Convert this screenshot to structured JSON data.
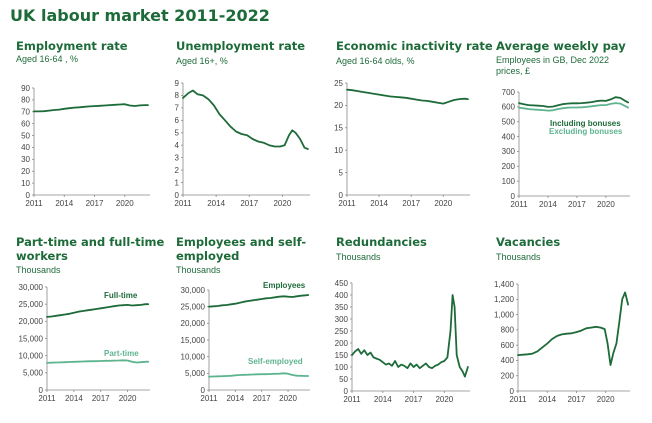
{
  "title": "UK labour market 2011-2022",
  "colors": {
    "dark": "#1e6b3a",
    "light": "#5fb490"
  },
  "chart_data": [
    {
      "id": "employment",
      "type": "line",
      "title_lines": [
        "Employment rate"
      ],
      "subtitle_lines": [
        "Aged 16-64 , %"
      ],
      "ylim": [
        0,
        90
      ],
      "yticks": [
        "0",
        "10",
        "20",
        "30",
        "40",
        "50",
        "60",
        "70",
        "80",
        "90"
      ],
      "ytick_values": [
        0,
        10,
        20,
        30,
        40,
        50,
        60,
        70,
        80,
        90
      ],
      "xlim": [
        2011,
        2022.5
      ],
      "xticks": [
        "2011",
        "2014",
        "2017",
        "2020"
      ],
      "xtick_values": [
        2011,
        2014,
        2017,
        2020
      ],
      "series": [
        {
          "color": "#1e6b3a",
          "x": [
            2011,
            2011.5,
            2012,
            2012.5,
            2013,
            2013.5,
            2014,
            2014.5,
            2015,
            2015.5,
            2016,
            2016.5,
            2017,
            2017.5,
            2018,
            2018.5,
            2019,
            2019.5,
            2020,
            2020.5,
            2021,
            2021.5,
            2022,
            2022.3
          ],
          "y": [
            70.3,
            70.3,
            70.5,
            71.0,
            71.5,
            71.8,
            72.5,
            73.0,
            73.5,
            73.8,
            74.2,
            74.5,
            74.8,
            75.0,
            75.3,
            75.6,
            75.9,
            76.1,
            76.4,
            75.3,
            74.9,
            75.4,
            75.6,
            75.6
          ]
        }
      ]
    },
    {
      "id": "unemployment",
      "type": "line",
      "title_lines": [
        "Unemployment rate"
      ],
      "subtitle_lines": [
        "Aged 16+, %"
      ],
      "ylim": [
        0,
        9
      ],
      "yticks": [
        "0",
        "1",
        "2",
        "3",
        "4",
        "5",
        "6",
        "7",
        "8",
        "9"
      ],
      "ytick_values": [
        0,
        1,
        2,
        3,
        4,
        5,
        6,
        7,
        8,
        9
      ],
      "xlim": [
        2011,
        2022.5
      ],
      "xticks": [
        "2011",
        "2014",
        "2017",
        "2020"
      ],
      "xtick_values": [
        2011,
        2014,
        2017,
        2020
      ],
      "series": [
        {
          "color": "#1e6b3a",
          "x": [
            2011,
            2011.5,
            2011.9,
            2012.3,
            2012.8,
            2013.3,
            2013.8,
            2014.3,
            2014.8,
            2015.3,
            2015.8,
            2016.3,
            2016.8,
            2017.3,
            2017.8,
            2018.3,
            2018.8,
            2019.3,
            2019.8,
            2020.2,
            2020.6,
            2020.9,
            2021.2,
            2021.6,
            2022,
            2022.3
          ],
          "y": [
            7.8,
            8.2,
            8.4,
            8.1,
            8.0,
            7.7,
            7.2,
            6.5,
            6.0,
            5.5,
            5.1,
            4.9,
            4.8,
            4.5,
            4.3,
            4.2,
            4.0,
            3.9,
            3.9,
            4.0,
            4.8,
            5.2,
            5.0,
            4.5,
            3.8,
            3.7
          ]
        }
      ]
    },
    {
      "id": "inactivity",
      "type": "line",
      "title_lines": [
        "Economic inactivity rate"
      ],
      "subtitle_lines": [
        "Aged 16-64 olds, %"
      ],
      "ylim": [
        0,
        25
      ],
      "yticks": [
        "0",
        "5",
        "10",
        "15",
        "20",
        "25"
      ],
      "ytick_values": [
        0,
        5,
        10,
        15,
        20,
        25
      ],
      "xlim": [
        2011,
        2022.5
      ],
      "xticks": [
        "2011",
        "2014",
        "2017",
        "2020"
      ],
      "xtick_values": [
        2011,
        2014,
        2017,
        2020
      ],
      "series": [
        {
          "color": "#1e6b3a",
          "x": [
            2011,
            2011.5,
            2012,
            2012.5,
            2013,
            2013.5,
            2014,
            2014.5,
            2015,
            2015.5,
            2016,
            2016.5,
            2017,
            2017.5,
            2018,
            2018.5,
            2019,
            2019.5,
            2020,
            2020.5,
            2021,
            2021.5,
            2022,
            2022.3
          ],
          "y": [
            23.5,
            23.4,
            23.2,
            23.0,
            22.8,
            22.6,
            22.4,
            22.2,
            22.0,
            21.9,
            21.8,
            21.7,
            21.5,
            21.3,
            21.1,
            21.0,
            20.8,
            20.6,
            20.4,
            20.8,
            21.2,
            21.4,
            21.5,
            21.4
          ]
        }
      ]
    },
    {
      "id": "pay",
      "type": "line",
      "title_lines": [
        "Average weekly pay"
      ],
      "subtitle_lines": [
        "Employees in GB, Dec 2022",
        "prices, £"
      ],
      "ylim": [
        0,
        700
      ],
      "yticks": [
        "0",
        "100",
        "200",
        "300",
        "400",
        "500",
        "600",
        "700"
      ],
      "ytick_values": [
        0,
        100,
        200,
        300,
        400,
        500,
        600,
        700
      ],
      "xlim": [
        2011,
        2022.5
      ],
      "xticks": [
        "2011",
        "2014",
        "2017",
        "2020"
      ],
      "xtick_values": [
        2011,
        2014,
        2017,
        2020
      ],
      "series": [
        {
          "name": "Including bonuses",
          "color": "#1e6b3a",
          "x": [
            2011,
            2011.5,
            2012,
            2012.5,
            2013,
            2013.5,
            2014,
            2014.5,
            2015,
            2015.5,
            2016,
            2016.5,
            2017,
            2017.5,
            2018,
            2018.5,
            2019,
            2019.5,
            2020,
            2020.5,
            2021,
            2021.5,
            2022,
            2022.3
          ],
          "y": [
            625,
            618,
            612,
            610,
            608,
            606,
            600,
            602,
            610,
            618,
            622,
            624,
            624,
            625,
            628,
            632,
            638,
            642,
            640,
            650,
            665,
            660,
            640,
            630
          ]
        },
        {
          "name": "Excluding bonuses",
          "color": "#5fb490",
          "x": [
            2011,
            2011.5,
            2012,
            2012.5,
            2013,
            2013.5,
            2014,
            2014.5,
            2015,
            2015.5,
            2016,
            2016.5,
            2017,
            2017.5,
            2018,
            2018.5,
            2019,
            2019.5,
            2020,
            2020.5,
            2021,
            2021.5,
            2022,
            2022.3
          ],
          "y": [
            595,
            590,
            585,
            582,
            580,
            578,
            575,
            577,
            585,
            590,
            594,
            596,
            596,
            597,
            600,
            604,
            608,
            612,
            612,
            620,
            625,
            622,
            605,
            595
          ]
        }
      ]
    },
    {
      "id": "parttime",
      "type": "line",
      "title_lines": [
        "Part-time and full-time",
        "workers"
      ],
      "subtitle_lines": [
        "Thousands"
      ],
      "ylim": [
        0,
        30000
      ],
      "yticks": [
        "0",
        "5,000",
        "10,000",
        "15,000",
        "20,000",
        "25,000",
        "30,000"
      ],
      "ytick_values": [
        0,
        5000,
        10000,
        15000,
        20000,
        25000,
        30000
      ],
      "xlim": [
        2011,
        2022.5
      ],
      "xticks": [
        "2011",
        "2014",
        "2017",
        "2020"
      ],
      "xtick_values": [
        2011,
        2014,
        2017,
        2020
      ],
      "series": [
        {
          "name": "Full-time",
          "color": "#1e6b3a",
          "x": [
            2011,
            2011.5,
            2012,
            2012.5,
            2013,
            2013.5,
            2014,
            2014.5,
            2015,
            2015.5,
            2016,
            2016.5,
            2017,
            2017.5,
            2018,
            2018.5,
            2019,
            2019.5,
            2020,
            2020.5,
            2021,
            2021.5,
            2022,
            2022.3
          ],
          "y": [
            21300,
            21400,
            21600,
            21800,
            22000,
            22200,
            22500,
            22800,
            23000,
            23200,
            23400,
            23600,
            23800,
            24000,
            24200,
            24400,
            24600,
            24700,
            24800,
            24600,
            24700,
            24800,
            25000,
            25000
          ]
        },
        {
          "name": "Part-time",
          "color": "#5fb490",
          "x": [
            2011,
            2011.5,
            2012,
            2012.5,
            2013,
            2013.5,
            2014,
            2014.5,
            2015,
            2015.5,
            2016,
            2016.5,
            2017,
            2017.5,
            2018,
            2018.5,
            2019,
            2019.5,
            2020,
            2020.5,
            2021,
            2021.5,
            2022,
            2022.3
          ],
          "y": [
            7900,
            7950,
            8000,
            8050,
            8100,
            8150,
            8200,
            8250,
            8300,
            8350,
            8400,
            8400,
            8450,
            8500,
            8500,
            8550,
            8600,
            8650,
            8600,
            8200,
            8000,
            8100,
            8200,
            8250
          ]
        }
      ]
    },
    {
      "id": "employees",
      "type": "line",
      "title_lines": [
        "Employees and self-",
        "employed"
      ],
      "subtitle_lines": [
        "Thousands"
      ],
      "ylim": [
        0,
        30000
      ],
      "yticks": [
        "0",
        "5,000",
        "10,000",
        "15,000",
        "20,000",
        "25,000",
        "30,000"
      ],
      "ytick_values": [
        0,
        5000,
        10000,
        15000,
        20000,
        25000,
        30000
      ],
      "xlim": [
        2011,
        2022.5
      ],
      "xticks": [
        "2011",
        "2014",
        "2017",
        "2020"
      ],
      "xtick_values": [
        2011,
        2014,
        2017,
        2020
      ],
      "series": [
        {
          "name": "Employees",
          "color": "#1e6b3a",
          "x": [
            2011,
            2011.5,
            2012,
            2012.5,
            2013,
            2013.5,
            2014,
            2014.5,
            2015,
            2015.5,
            2016,
            2016.5,
            2017,
            2017.5,
            2018,
            2018.5,
            2019,
            2019.5,
            2020,
            2020.5,
            2021,
            2021.5,
            2022,
            2022.3
          ],
          "y": [
            25000,
            25100,
            25200,
            25400,
            25500,
            25700,
            25900,
            26200,
            26500,
            26700,
            26900,
            27100,
            27300,
            27500,
            27600,
            27800,
            28000,
            28100,
            28000,
            27900,
            28100,
            28300,
            28400,
            28500
          ]
        },
        {
          "name": "Self-employed",
          "color": "#5fb490",
          "x": [
            2011,
            2011.5,
            2012,
            2012.5,
            2013,
            2013.5,
            2014,
            2014.5,
            2015,
            2015.5,
            2016,
            2016.5,
            2017,
            2017.5,
            2018,
            2018.5,
            2019,
            2019.5,
            2020,
            2020.5,
            2021,
            2021.5,
            2022,
            2022.3
          ],
          "y": [
            4000,
            4050,
            4100,
            4150,
            4200,
            4250,
            4400,
            4500,
            4550,
            4600,
            4650,
            4700,
            4750,
            4750,
            4800,
            4850,
            4900,
            5000,
            4900,
            4500,
            4300,
            4250,
            4200,
            4200
          ]
        }
      ]
    },
    {
      "id": "redundancies",
      "type": "line",
      "title_lines": [
        "Redundancies"
      ],
      "subtitle_lines": [
        "Thousands"
      ],
      "ylim": [
        0,
        450
      ],
      "yticks": [
        "0",
        "50",
        "100",
        "150",
        "200",
        "250",
        "300",
        "350",
        "400",
        "450"
      ],
      "ytick_values": [
        0,
        50,
        100,
        150,
        200,
        250,
        300,
        350,
        400,
        450
      ],
      "xlim": [
        2011,
        2022.5
      ],
      "xticks": [
        "2011",
        "2014",
        "2017",
        "2020"
      ],
      "xtick_values": [
        2011,
        2014,
        2017,
        2020
      ],
      "series": [
        {
          "color": "#1e6b3a",
          "x": [
            2011,
            2011.3,
            2011.6,
            2011.9,
            2012.2,
            2012.5,
            2012.8,
            2013.1,
            2013.4,
            2013.7,
            2014,
            2014.3,
            2014.6,
            2014.9,
            2015.2,
            2015.5,
            2015.8,
            2016.1,
            2016.4,
            2016.7,
            2017,
            2017.3,
            2017.6,
            2017.9,
            2018.2,
            2018.5,
            2018.8,
            2019.1,
            2019.4,
            2019.7,
            2020,
            2020.3,
            2020.6,
            2020.8,
            2021,
            2021.2,
            2021.5,
            2021.8,
            2022,
            2022.3
          ],
          "y": [
            150,
            165,
            175,
            155,
            170,
            150,
            160,
            140,
            135,
            130,
            120,
            110,
            115,
            105,
            125,
            100,
            110,
            105,
            95,
            115,
            100,
            110,
            95,
            105,
            115,
            100,
            95,
            105,
            110,
            120,
            125,
            140,
            250,
            400,
            350,
            150,
            100,
            80,
            60,
            100
          ]
        }
      ]
    },
    {
      "id": "vacancies",
      "type": "line",
      "title_lines": [
        "Vacancies"
      ],
      "subtitle_lines": [
        "Thousands"
      ],
      "ylim": [
        0,
        1400
      ],
      "yticks": [
        "0",
        "200",
        "400",
        "600",
        "800",
        "1,000",
        "1,200",
        "1,400"
      ],
      "ytick_values": [
        0,
        200,
        400,
        600,
        800,
        1000,
        1200,
        1400
      ],
      "xlim": [
        2011,
        2022.5
      ],
      "xticks": [
        "2011",
        "2014",
        "2017",
        "2020"
      ],
      "xtick_values": [
        2011,
        2014,
        2017,
        2020
      ],
      "series": [
        {
          "color": "#1e6b3a",
          "x": [
            2011,
            2011.5,
            2012,
            2012.5,
            2013,
            2013.5,
            2014,
            2014.5,
            2015,
            2015.5,
            2016,
            2016.5,
            2017,
            2017.5,
            2018,
            2018.5,
            2019,
            2019.5,
            2019.9,
            2020.2,
            2020.5,
            2020.8,
            2021.1,
            2021.4,
            2021.7,
            2022,
            2022.3
          ],
          "y": [
            470,
            475,
            480,
            490,
            520,
            570,
            620,
            680,
            720,
            740,
            750,
            755,
            770,
            790,
            820,
            830,
            840,
            830,
            810,
            620,
            340,
            500,
            620,
            900,
            1200,
            1290,
            1130
          ]
        }
      ]
    }
  ],
  "annotations": [
    {
      "chart": "pay",
      "label": "Including bonuses",
      "color": "#1e6b3a"
    },
    {
      "chart": "pay",
      "label": "Excluding bonuses",
      "color": "#5fb490"
    },
    {
      "chart": "parttime",
      "label": "Full-time",
      "color": "#1e6b3a"
    },
    {
      "chart": "parttime",
      "label": "Part-time",
      "color": "#5fb490"
    },
    {
      "chart": "employees",
      "label": "Employees",
      "color": "#1e6b3a"
    },
    {
      "chart": "employees",
      "label": "Self-employed",
      "color": "#5fb490"
    }
  ]
}
